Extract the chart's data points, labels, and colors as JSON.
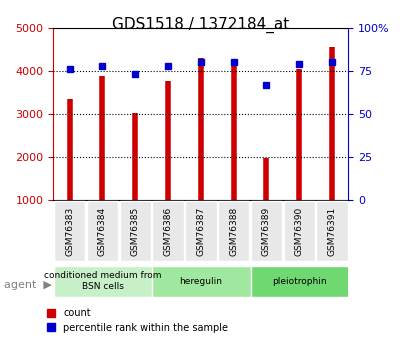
{
  "title": "GDS1518 / 1372184_at",
  "samples": [
    "GSM76383",
    "GSM76384",
    "GSM76385",
    "GSM76386",
    "GSM76387",
    "GSM76388",
    "GSM76389",
    "GSM76390",
    "GSM76391"
  ],
  "counts": [
    3350,
    3870,
    3030,
    3760,
    4290,
    4280,
    1980,
    4050,
    4560
  ],
  "percentiles": [
    76,
    78,
    73,
    78,
    80,
    80,
    67,
    79,
    80
  ],
  "groups": [
    {
      "label": "conditioned medium from\nBSN cells",
      "start": 0,
      "end": 3,
      "color": "#c8f0c8"
    },
    {
      "label": "heregulin",
      "start": 3,
      "end": 6,
      "color": "#a0e8a0"
    },
    {
      "label": "pleiotrophin",
      "start": 6,
      "end": 9,
      "color": "#70d870"
    }
  ],
  "ylim_left": [
    1000,
    5000
  ],
  "ylim_right": [
    0,
    100
  ],
  "yticks_left": [
    1000,
    2000,
    3000,
    4000,
    5000
  ],
  "yticks_right": [
    0,
    25,
    50,
    75,
    100
  ],
  "yticklabels_right": [
    "0",
    "25",
    "50",
    "75",
    "100%"
  ],
  "bar_color": "#cc0000",
  "dot_color": "#0000cc",
  "grid_color": "#000000",
  "bar_width": 0.5,
  "left_tick_color": "#cc0000",
  "right_tick_color": "#0000cc",
  "bg_color": "#e8e8e8"
}
